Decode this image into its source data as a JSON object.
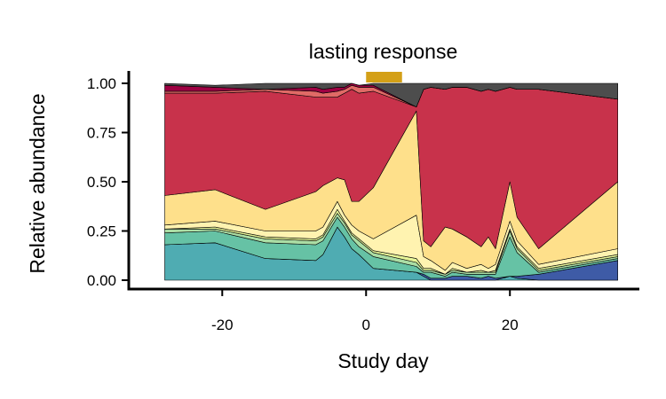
{
  "chart_data": {
    "type": "area",
    "title": "lasting response",
    "xlabel": "Study day",
    "ylabel": "Relative abundance",
    "xlim": [
      -33,
      38
    ],
    "ylim": [
      0,
      1
    ],
    "x_ticks": [
      -20,
      0,
      20
    ],
    "x_tick_labels": [
      "-20",
      "0",
      "20"
    ],
    "y_ticks": [
      0,
      0.25,
      0.5,
      0.75,
      1
    ],
    "y_tick_labels": [
      "0.00",
      "0.25",
      "0.50",
      "0.75",
      "1.00"
    ],
    "treatment_period": [
      0,
      5
    ],
    "treatment_color": "#D4A017",
    "grid": false,
    "legend": "none",
    "x": [
      -28,
      -21,
      -14,
      -7,
      -6,
      -4,
      -3,
      -2,
      -1,
      1,
      7,
      8,
      9,
      11,
      12,
      14,
      16,
      17,
      18,
      20,
      21,
      24,
      35
    ],
    "series": [
      {
        "color": "#4FACB2",
        "values": [
          0.18,
          0.19,
          0.11,
          0.1,
          0.13,
          0.27,
          0.22,
          0.16,
          0.13,
          0.06,
          0.04,
          0.02,
          0.0,
          0.0,
          0.0,
          0.0,
          0.0,
          0.0,
          0.0,
          0.02,
          0.01,
          0.0,
          0.0
        ]
      },
      {
        "color": "#3E5BA6",
        "values": [
          0.0,
          0.0,
          0.0,
          0.0,
          0.0,
          0.0,
          0.0,
          0.0,
          0.0,
          0.0,
          0.0,
          0.01,
          0.01,
          0.01,
          0.02,
          0.02,
          0.01,
          0.02,
          0.01,
          0.0,
          0.01,
          0.03,
          0.1
        ]
      },
      {
        "color": "#66C2A5",
        "values": [
          0.06,
          0.06,
          0.08,
          0.08,
          0.07,
          0.05,
          0.05,
          0.05,
          0.04,
          0.06,
          0.03,
          0.01,
          0.03,
          0.01,
          0.02,
          0.01,
          0.02,
          0.01,
          0.02,
          0.2,
          0.12,
          0.01,
          0.01
        ]
      },
      {
        "color": "#ABDDA4",
        "values": [
          0.02,
          0.01,
          0.02,
          0.02,
          0.02,
          0.02,
          0.02,
          0.02,
          0.03,
          0.02,
          0.02,
          0.01,
          0.01,
          0.01,
          0.01,
          0.01,
          0.01,
          0.01,
          0.01,
          0.03,
          0.02,
          0.01,
          0.01
        ]
      },
      {
        "color": "#E6F598",
        "values": [
          0.0,
          0.01,
          0.01,
          0.01,
          0.01,
          0.02,
          0.01,
          0.01,
          0.01,
          0.01,
          0.02,
          0.01,
          0.01,
          0.0,
          0.01,
          0.0,
          0.01,
          0.0,
          0.01,
          0.01,
          0.01,
          0.01,
          0.01
        ]
      },
      {
        "color": "#FFF3B0",
        "values": [
          0.02,
          0.03,
          0.03,
          0.04,
          0.04,
          0.04,
          0.03,
          0.04,
          0.04,
          0.06,
          0.22,
          0.06,
          0.04,
          0.02,
          0.03,
          0.02,
          0.03,
          0.02,
          0.03,
          0.04,
          0.03,
          0.02,
          0.03
        ]
      },
      {
        "color": "#FEE08B",
        "values": [
          0.15,
          0.16,
          0.11,
          0.2,
          0.21,
          0.12,
          0.18,
          0.12,
          0.15,
          0.26,
          0.53,
          0.08,
          0.07,
          0.22,
          0.17,
          0.16,
          0.09,
          0.16,
          0.08,
          0.2,
          0.12,
          0.08,
          0.34
        ]
      },
      {
        "color": "#C8324B",
        "values": [
          0.52,
          0.49,
          0.6,
          0.48,
          0.45,
          0.41,
          0.44,
          0.57,
          0.55,
          0.49,
          0.02,
          0.77,
          0.81,
          0.7,
          0.72,
          0.76,
          0.79,
          0.75,
          0.8,
          0.48,
          0.65,
          0.81,
          0.42
        ]
      },
      {
        "color": "#E06A66",
        "values": [
          0.01,
          0.01,
          0.01,
          0.03,
          0.02,
          0.03,
          0.02,
          0.02,
          0.03,
          0.02,
          0.0,
          0.0,
          0.0,
          0.0,
          0.0,
          0.0,
          0.0,
          0.0,
          0.0,
          0.0,
          0.0,
          0.0,
          0.0
        ]
      },
      {
        "color": "#9E0142",
        "values": [
          0.03,
          0.02,
          0.0,
          0.02,
          0.02,
          0.02,
          0.01,
          0.01,
          0.01,
          0.01,
          0.0,
          0.0,
          0.0,
          0.0,
          0.0,
          0.0,
          0.0,
          0.0,
          0.0,
          0.0,
          0.0,
          0.0,
          0.0
        ]
      },
      {
        "color": "#4D4D4D",
        "values": [
          0.01,
          0.01,
          0.03,
          0.02,
          0.03,
          0.02,
          0.02,
          0.0,
          0.0,
          0.01,
          0.12,
          0.03,
          0.02,
          0.03,
          0.02,
          0.02,
          0.04,
          0.03,
          0.04,
          0.02,
          0.03,
          0.03,
          0.08
        ]
      }
    ]
  }
}
